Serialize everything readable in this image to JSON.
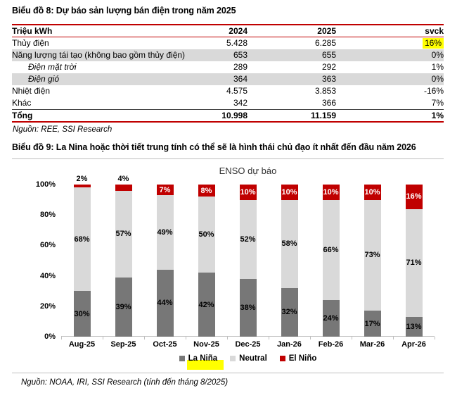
{
  "table_section": {
    "title": "Biểu đồ 8: Dự báo sản lượng bán điện trong năm 2025",
    "columns": [
      "Triệu kWh",
      "2024",
      "2025",
      "svck"
    ],
    "rows": [
      {
        "label": "Thủy điện",
        "y2024": "5.428",
        "y2025": "6.285",
        "svck": "16%",
        "svck_highlight": true,
        "shaded": false,
        "indent": false,
        "total": false
      },
      {
        "label": "Năng lượng tái tạo (không bao gồm thủy điện)",
        "y2024": "653",
        "y2025": "655",
        "svck": "0%",
        "svck_highlight": false,
        "shaded": true,
        "indent": false,
        "total": false
      },
      {
        "label": "Điện mặt trời",
        "y2024": "289",
        "y2025": "292",
        "svck": "1%",
        "svck_highlight": false,
        "shaded": false,
        "indent": true,
        "total": false
      },
      {
        "label": "Điện gió",
        "y2024": "364",
        "y2025": "363",
        "svck": "0%",
        "svck_highlight": false,
        "shaded": true,
        "indent": true,
        "total": false
      },
      {
        "label": "Nhiệt điện",
        "y2024": "4.575",
        "y2025": "3.853",
        "svck": "-16%",
        "svck_highlight": false,
        "shaded": false,
        "indent": false,
        "total": false
      },
      {
        "label": "Khác",
        "y2024": "342",
        "y2025": "366",
        "svck": "7%",
        "svck_highlight": false,
        "shaded": false,
        "indent": false,
        "total": false
      },
      {
        "label": "Tổng",
        "y2024": "10.998",
        "y2025": "11.159",
        "svck": "1%",
        "svck_highlight": false,
        "shaded": false,
        "indent": false,
        "total": true
      }
    ],
    "source": "Nguồn: REE, SSI Research"
  },
  "chart_section": {
    "title": "Biểu đồ 9: La Nina hoặc thời tiết trung tính có thể sẽ là hình thái chủ đạo ít nhất đến đầu năm 2026",
    "source": "Nguồn: NOAA, IRI, SSI Research (tính đến tháng 8/2025)"
  },
  "chart_data": {
    "type": "bar",
    "stacked": true,
    "title": "ENSO dự báo",
    "categories": [
      "Aug-25",
      "Sep-25",
      "Oct-25",
      "Nov-25",
      "Dec-25",
      "Jan-26",
      "Feb-26",
      "Mar-26",
      "Apr-26"
    ],
    "series": [
      {
        "name": "La Niña",
        "color": "#777777",
        "values": [
          30,
          39,
          44,
          42,
          38,
          32,
          24,
          17,
          13
        ]
      },
      {
        "name": "Neutral",
        "color": "#D9D9D9",
        "values": [
          68,
          57,
          49,
          50,
          52,
          58,
          66,
          73,
          71
        ]
      },
      {
        "name": "El Niño",
        "color": "#C00000",
        "values": [
          2,
          4,
          7,
          8,
          10,
          10,
          10,
          10,
          16
        ]
      }
    ],
    "y_ticks": [
      "100%",
      "80%",
      "60%",
      "40%",
      "20%",
      "0%"
    ],
    "ylim": [
      0,
      100
    ],
    "grid": false,
    "legend_position": "bottom",
    "legend_highlight": "La Niña",
    "outside_label_threshold": 6
  },
  "colors": {
    "accent_red": "#C00000",
    "row_shade": "#D9D9D9",
    "highlight_yellow": "#FFFF00",
    "divider_gray": "#BFBFBF",
    "la_nina": "#777777",
    "neutral": "#D9D9D9",
    "el_nino": "#C00000"
  }
}
